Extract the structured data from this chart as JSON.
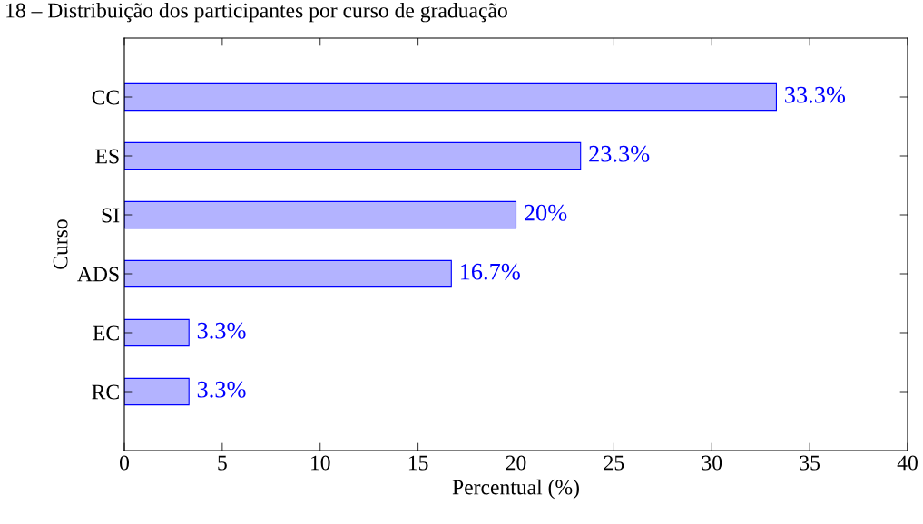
{
  "chart_data": {
    "type": "bar",
    "orientation": "horizontal",
    "title": "18 – Distribuição dos participantes por curso de graduação",
    "xlabel": "Percentual (%)",
    "ylabel": "Curso",
    "categories": [
      "CC",
      "ES",
      "SI",
      "ADS",
      "EC",
      "RC"
    ],
    "values": [
      33.3,
      23.3,
      20,
      16.7,
      3.3,
      3.3
    ],
    "value_labels": [
      "33.3%",
      "23.3%",
      "20%",
      "16.7%",
      "3.3%",
      "3.3%"
    ],
    "color": "#b3b3ff",
    "xlim": [
      0,
      40
    ],
    "xticks": [
      0,
      5,
      10,
      15,
      20,
      25,
      30,
      35,
      40
    ],
    "grid": false,
    "legend": false
  }
}
